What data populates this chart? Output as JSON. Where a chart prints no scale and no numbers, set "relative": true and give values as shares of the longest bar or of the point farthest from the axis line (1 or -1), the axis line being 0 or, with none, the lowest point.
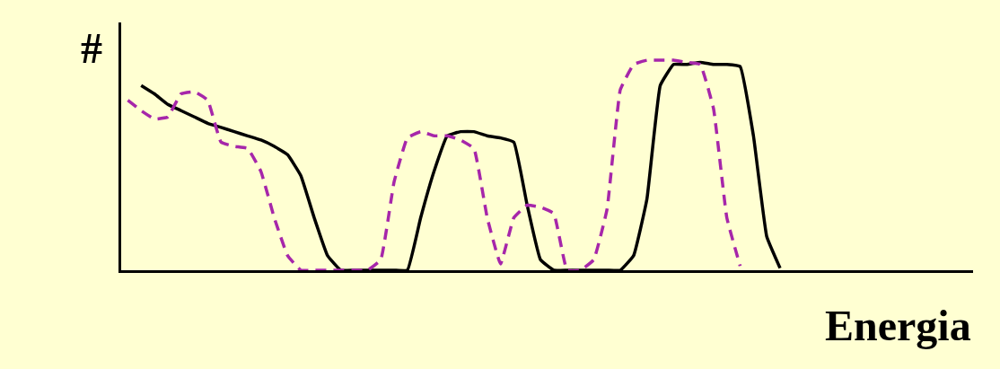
{
  "chart_data": {
    "type": "line",
    "relative": true,
    "xlabel": "Energia",
    "ylabel": "#",
    "grid": false,
    "marker": "none",
    "categories": [
      null,
      null,
      null,
      null,
      null,
      null,
      null,
      null,
      null,
      null,
      null,
      null,
      null,
      null,
      null,
      null,
      null,
      null,
      null,
      null,
      null,
      null,
      null,
      null,
      null,
      null,
      null,
      null,
      null,
      null,
      null,
      null,
      null,
      null,
      null,
      null,
      null,
      null,
      null,
      null,
      null,
      null,
      null,
      null,
      null,
      null,
      null,
      null,
      null,
      null,
      null
    ],
    "series": [
      {
        "color": "#000000",
        "line_style": "solid",
        "values": [
          null,
          0.88,
          0.84,
          0.79,
          0.76,
          0.73,
          0.7,
          0.68,
          0.66,
          0.64,
          0.62,
          0.59,
          0.55,
          0.45,
          0.25,
          0.07,
          0,
          0,
          0,
          0,
          0,
          0,
          0.25,
          0.47,
          0.64,
          0.66,
          0.66,
          0.64,
          0.63,
          0.61,
          0.31,
          0.05,
          0,
          0,
          0,
          0,
          0,
          0,
          0.07,
          0.34,
          0.88,
          0.98,
          0.98,
          0.99,
          0.98,
          0.98,
          0.97,
          0.64,
          0.16,
          0.01,
          null
        ]
      },
      {
        "color": "#a626aa",
        "line_style": "dashed",
        "values": [
          0.81,
          0.76,
          0.72,
          0.73,
          0.84,
          0.85,
          0.81,
          0.61,
          0.59,
          0.58,
          0.47,
          0.25,
          0.07,
          0,
          0,
          0,
          0,
          0,
          0,
          0.05,
          0.42,
          0.63,
          0.66,
          0.64,
          0.64,
          0.62,
          0.58,
          0.25,
          0.03,
          0.25,
          0.31,
          0.3,
          0.27,
          0,
          0,
          0.05,
          0.29,
          0.86,
          0.98,
          1.0,
          1.0,
          1.0,
          0.99,
          0.98,
          0.77,
          0.25,
          0.02,
          null,
          null,
          null,
          null
        ]
      }
    ]
  }
}
